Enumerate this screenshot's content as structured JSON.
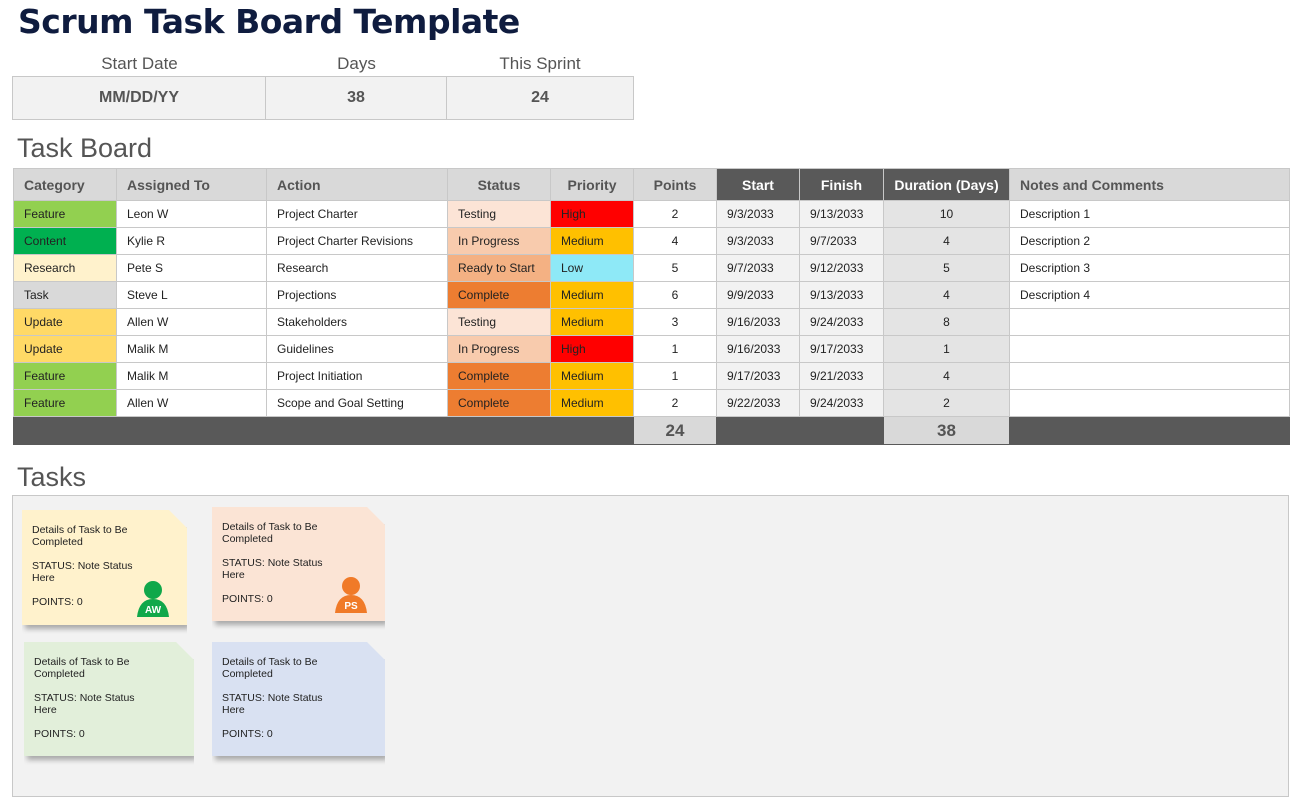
{
  "title": "Scrum Task Board Template",
  "summary": {
    "start_label": "Start Date",
    "start_value": "MM/DD/YY",
    "days_label": "Days",
    "days_value": "38",
    "sprint_label": "This Sprint",
    "sprint_value": "24"
  },
  "task_board": {
    "heading": "Task Board",
    "columns": [
      "Category",
      "Assigned To",
      "Action",
      "Status",
      "Priority",
      "Points",
      "Start",
      "Finish",
      "Duration (Days)",
      "Notes and Comments"
    ],
    "rows": [
      [
        "Feature",
        "Leon W",
        "Project Charter",
        "Testing",
        "High",
        "2",
        "9/3/2033",
        "9/13/2033",
        "10",
        "Description 1"
      ],
      [
        "Content",
        "Kylie R",
        "Project Charter Revisions",
        "In Progress",
        "Medium",
        "4",
        "9/3/2033",
        "9/7/2033",
        "4",
        "Description 2"
      ],
      [
        "Research",
        "Pete S",
        "Research",
        "Ready to Start",
        "Low",
        "5",
        "9/7/2033",
        "9/12/2033",
        "5",
        "Description 3"
      ],
      [
        "Task",
        "Steve L",
        "Projections",
        "Complete",
        "Medium",
        "6",
        "9/9/2033",
        "9/13/2033",
        "4",
        "Description 4"
      ],
      [
        "Update",
        "Allen W",
        "Stakeholders",
        "Testing",
        "Medium",
        "3",
        "9/16/2033",
        "9/24/2033",
        "8",
        ""
      ],
      [
        "Update",
        "Malik M",
        "Guidelines",
        "In Progress",
        "High",
        "1",
        "9/16/2033",
        "9/17/2033",
        "1",
        ""
      ],
      [
        "Feature",
        "Malik M",
        "Project Initiation",
        "Complete",
        "Medium",
        "1",
        "9/17/2033",
        "9/21/2033",
        "4",
        ""
      ],
      [
        "Feature",
        "Allen W",
        "Scope and Goal Setting",
        "Complete",
        "Medium",
        "2",
        "9/22/2033",
        "9/24/2033",
        "2",
        ""
      ]
    ],
    "total_points": "24",
    "total_duration": "38"
  },
  "colors": {
    "category": {
      "Feature": "#92d050",
      "Content": "#00b050",
      "Research": "#fff2cc",
      "Task": "#d9d9d9",
      "Update": "#ffd966"
    },
    "status": {
      "Testing": "#fce4d6",
      "In Progress": "#f8cbad",
      "Ready to Start": "#f4b183",
      "Complete": "#ed7d31"
    },
    "priority": {
      "High": "#ff0000",
      "Medium": "#ffc000",
      "Low": "#8ee9f7"
    }
  },
  "tasks": {
    "heading": "Tasks",
    "cards": [
      {
        "details": "Details of Task to Be Completed",
        "status": "STATUS: Note Status Here",
        "points": "POINTS: 0",
        "color": "#fff2cc",
        "avatar": "AW",
        "avatar_color": "#10a84a"
      },
      {
        "details": "Details of Task to Be Completed",
        "status": "STATUS: Note Status Here",
        "points": "POINTS: 0",
        "color": "#fbe4d5",
        "avatar": "PS",
        "avatar_color": "#f07a28"
      },
      {
        "details": "Details of Task to Be Completed",
        "status": "STATUS: Note Status Here",
        "points": "POINTS: 0",
        "color": "#e2efda"
      },
      {
        "details": "Details of Task to Be Completed",
        "status": "STATUS: Note Status Here",
        "points": "POINTS: 0",
        "color": "#d9e1f2"
      }
    ]
  }
}
